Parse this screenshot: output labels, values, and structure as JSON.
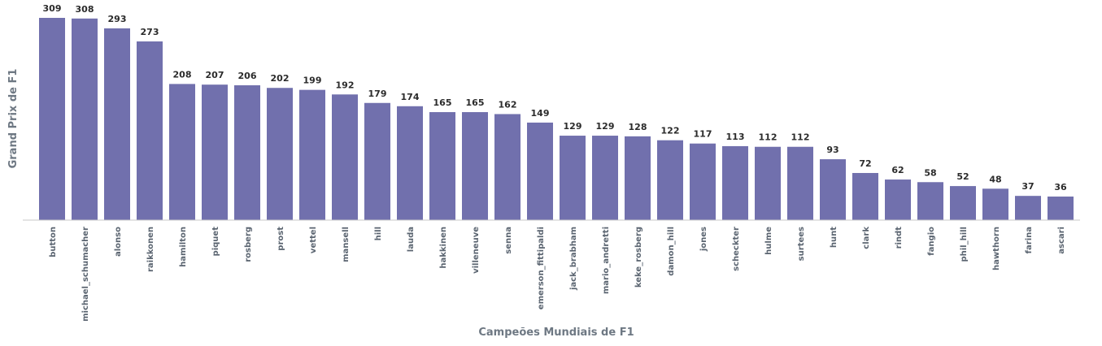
{
  "chart_data": {
    "type": "bar",
    "title": "",
    "xlabel": "Campeões Mundiais de F1",
    "ylabel": "Grand Prix de F1",
    "ylim": [
      0,
      309
    ],
    "grid": false,
    "categories": [
      "button",
      "michael_schumacher",
      "alonso",
      "raikkonen",
      "hamilton",
      "piquet",
      "rosberg",
      "prost",
      "vettel",
      "mansell",
      "hill",
      "lauda",
      "hakkinen",
      "villeneuve",
      "senna",
      "emerson_fittipaldi",
      "jack_brabham",
      "mario_andretti",
      "keke_rosberg",
      "damon_hill",
      "jones",
      "scheckter",
      "hulme",
      "surtees",
      "hunt",
      "clark",
      "rindt",
      "fangio",
      "phil_hill",
      "hawthorn",
      "farina",
      "ascari"
    ],
    "values": [
      309,
      308,
      293,
      273,
      208,
      207,
      206,
      202,
      199,
      192,
      179,
      174,
      165,
      165,
      162,
      149,
      129,
      129,
      128,
      122,
      117,
      113,
      112,
      112,
      93,
      72,
      62,
      58,
      52,
      48,
      37,
      36
    ],
    "bar_color": "#7170ad"
  }
}
